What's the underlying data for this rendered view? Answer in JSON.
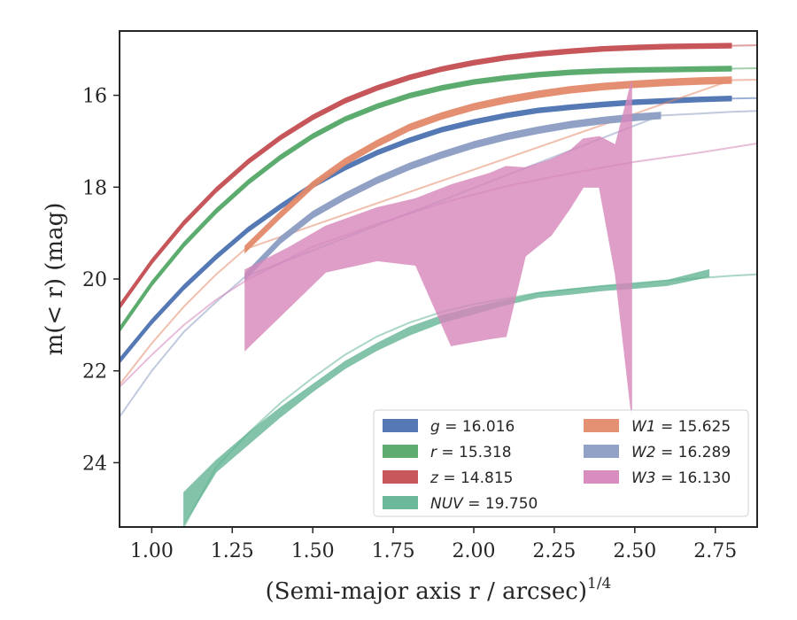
{
  "chart_data": {
    "type": "line",
    "xlabel": "(Semi-major axis r / arcsec)",
    "xlabel_superscript": "1/4",
    "ylabel": "m(< r) (mag)",
    "xlim": [
      0.9,
      2.88
    ],
    "ylim": [
      25.4,
      14.6
    ],
    "y_inverted": true,
    "xticks": [
      "1.00",
      "1.25",
      "1.50",
      "1.75",
      "2.00",
      "2.25",
      "2.50",
      "2.75"
    ],
    "xtick_values": [
      1.0,
      1.25,
      1.5,
      1.75,
      2.0,
      2.25,
      2.5,
      2.75
    ],
    "yticks": [
      "16",
      "18",
      "20",
      "22",
      "24"
    ],
    "ytick_values": [
      16,
      18,
      20,
      22,
      24
    ],
    "grid": false,
    "legend_position": "lower-right",
    "series": [
      {
        "name": "g = 16.016",
        "band": "g",
        "mag": "16.016",
        "color": "#4c72b0",
        "legend_col": 0,
        "band_width": 0.05,
        "x": [
          0.9,
          1.0,
          1.1,
          1.2,
          1.3,
          1.4,
          1.5,
          1.6,
          1.7,
          1.8,
          1.9,
          2.0,
          2.1,
          2.2,
          2.3,
          2.4,
          2.5,
          2.6,
          2.7,
          2.8
        ],
        "y": [
          21.78,
          20.93,
          20.18,
          19.52,
          18.92,
          18.42,
          17.96,
          17.58,
          17.25,
          16.98,
          16.75,
          16.58,
          16.44,
          16.33,
          16.26,
          16.2,
          16.15,
          16.12,
          16.09,
          16.07
        ],
        "faint_x": [
          2.8,
          2.88
        ],
        "faint_y": [
          16.07,
          16.06
        ]
      },
      {
        "name": "r = 15.318",
        "band": "r",
        "mag": "15.318",
        "color": "#55a868",
        "legend_col": 0,
        "band_width": 0.05,
        "x": [
          0.9,
          1.0,
          1.1,
          1.2,
          1.3,
          1.4,
          1.5,
          1.6,
          1.7,
          1.8,
          1.9,
          2.0,
          2.1,
          2.2,
          2.3,
          2.4,
          2.5,
          2.6,
          2.7,
          2.8
        ],
        "y": [
          21.1,
          20.1,
          19.25,
          18.52,
          17.89,
          17.35,
          16.89,
          16.52,
          16.24,
          16.01,
          15.84,
          15.71,
          15.62,
          15.55,
          15.5,
          15.47,
          15.45,
          15.44,
          15.43,
          15.42
        ],
        "faint_x": [
          2.8,
          2.88
        ],
        "faint_y": [
          15.42,
          15.41
        ]
      },
      {
        "name": "z = 14.815",
        "band": "z",
        "mag": "14.815",
        "color": "#c44e52",
        "legend_col": 0,
        "band_width": 0.05,
        "x": [
          0.9,
          1.0,
          1.1,
          1.2,
          1.3,
          1.4,
          1.5,
          1.6,
          1.7,
          1.8,
          1.9,
          2.0,
          2.1,
          2.2,
          2.3,
          2.4,
          2.5,
          2.6,
          2.7,
          2.8
        ],
        "y": [
          20.6,
          19.62,
          18.78,
          18.06,
          17.44,
          16.92,
          16.48,
          16.12,
          15.84,
          15.61,
          15.43,
          15.29,
          15.18,
          15.1,
          15.04,
          14.99,
          14.96,
          14.94,
          14.93,
          14.92
        ],
        "faint_x": [
          2.8,
          2.88
        ],
        "faint_y": [
          14.92,
          14.91
        ]
      },
      {
        "name": "NUV = 19.750",
        "band": "NUV",
        "mag": "19.750",
        "color": "#64b594",
        "legend_col": 0,
        "upper": [
          [
            1.1,
            24.65
          ],
          [
            1.2,
            23.95
          ],
          [
            1.3,
            23.35
          ],
          [
            1.4,
            22.8
          ],
          [
            1.5,
            22.3
          ],
          [
            1.6,
            21.8
          ],
          [
            1.7,
            21.4
          ],
          [
            1.8,
            21.05
          ],
          [
            1.9,
            20.8
          ],
          [
            2.0,
            20.62
          ],
          [
            2.1,
            20.46
          ],
          [
            2.2,
            20.3
          ],
          [
            2.3,
            20.22
          ],
          [
            2.4,
            20.15
          ],
          [
            2.5,
            20.1
          ],
          [
            2.6,
            20.03
          ],
          [
            2.73,
            19.8
          ]
        ],
        "lower": [
          [
            1.1,
            25.35
          ],
          [
            1.2,
            24.2
          ],
          [
            1.3,
            23.6
          ],
          [
            1.4,
            23.0
          ],
          [
            1.5,
            22.45
          ],
          [
            1.6,
            21.95
          ],
          [
            1.7,
            21.55
          ],
          [
            1.8,
            21.22
          ],
          [
            1.9,
            20.95
          ],
          [
            2.0,
            20.76
          ],
          [
            2.1,
            20.56
          ],
          [
            2.2,
            20.4
          ],
          [
            2.3,
            20.33
          ],
          [
            2.4,
            20.25
          ],
          [
            2.5,
            20.2
          ],
          [
            2.6,
            20.14
          ],
          [
            2.73,
            19.95
          ]
        ],
        "faint_x": [
          1.1,
          1.2,
          1.3,
          1.4,
          1.5,
          1.6,
          1.7,
          1.8,
          1.9,
          2.0,
          2.2,
          2.4,
          2.6,
          2.8,
          2.88
        ],
        "faint_y": [
          25.4,
          24.1,
          23.35,
          22.7,
          22.15,
          21.65,
          21.25,
          20.95,
          20.72,
          20.55,
          20.3,
          20.15,
          20.03,
          19.93,
          19.9
        ]
      },
      {
        "name": "W1 = 15.625",
        "band": "W1",
        "mag": "15.625",
        "color": "#e38a6b",
        "legend_col": 1,
        "band_width": 0.07,
        "x": [
          1.29,
          1.4,
          1.5,
          1.6,
          1.7,
          1.8,
          1.9,
          2.0,
          2.1,
          2.2,
          2.3,
          2.4,
          2.5,
          2.6,
          2.7,
          2.8
        ],
        "y": [
          19.35,
          18.6,
          17.95,
          17.45,
          17.05,
          16.7,
          16.45,
          16.25,
          16.1,
          15.98,
          15.88,
          15.81,
          15.76,
          15.72,
          15.69,
          15.67
        ],
        "faint_x": [
          0.9,
          1.0,
          1.1,
          1.2,
          1.29,
          2.8,
          2.88
        ],
        "faint_y": [
          22.3,
          21.4,
          20.6,
          19.9,
          19.35,
          15.67,
          15.66
        ]
      },
      {
        "name": "W2 = 16.289",
        "band": "W2",
        "mag": "16.289",
        "color": "#8c9dc3",
        "legend_col": 1,
        "band_width": 0.07,
        "x": [
          1.29,
          1.4,
          1.5,
          1.6,
          1.7,
          1.8,
          1.9,
          2.0,
          2.1,
          2.2,
          2.3,
          2.4,
          2.5,
          2.58
        ],
        "y": [
          19.95,
          19.15,
          18.6,
          18.2,
          17.85,
          17.55,
          17.3,
          17.08,
          16.9,
          16.76,
          16.64,
          16.55,
          16.48,
          16.44
        ],
        "faint_x": [
          0.9,
          1.0,
          1.1,
          1.2,
          1.29,
          2.58,
          2.7,
          2.8,
          2.88
        ],
        "faint_y": [
          23.0,
          22.0,
          21.15,
          20.5,
          19.95,
          16.44,
          16.4,
          16.36,
          16.34
        ]
      },
      {
        "name": "W3 = 16.130",
        "band": "W3",
        "mag": "16.130",
        "color": "#d687bb",
        "legend_col": 1,
        "upper": [
          [
            1.29,
            19.8
          ],
          [
            1.43,
            19.3
          ],
          [
            1.54,
            18.85
          ],
          [
            1.7,
            18.45
          ],
          [
            1.82,
            18.25
          ],
          [
            1.93,
            17.95
          ],
          [
            2.05,
            17.7
          ],
          [
            2.1,
            17.55
          ],
          [
            2.16,
            17.58
          ],
          [
            2.24,
            17.4
          ],
          [
            2.3,
            17.2
          ],
          [
            2.34,
            16.95
          ],
          [
            2.39,
            16.9
          ],
          [
            2.44,
            17.08
          ],
          [
            2.49,
            15.7
          ]
        ],
        "lower": [
          [
            1.29,
            21.55
          ],
          [
            1.43,
            20.6
          ],
          [
            1.54,
            19.85
          ],
          [
            1.7,
            19.6
          ],
          [
            1.82,
            19.7
          ],
          [
            1.93,
            21.45
          ],
          [
            2.05,
            21.3
          ],
          [
            2.1,
            21.25
          ],
          [
            2.16,
            19.5
          ],
          [
            2.24,
            19.05
          ],
          [
            2.3,
            18.45
          ],
          [
            2.34,
            18.0
          ],
          [
            2.39,
            18.0
          ],
          [
            2.44,
            19.9
          ],
          [
            2.49,
            22.95
          ]
        ],
        "faint_x": [
          0.9,
          1.0,
          1.1,
          1.2,
          1.3,
          1.5,
          1.7,
          1.9,
          2.1,
          2.3,
          2.5,
          2.7,
          2.88
        ],
        "faint_y": [
          22.35,
          21.65,
          21.0,
          20.45,
          20.0,
          19.3,
          18.8,
          18.35,
          17.98,
          17.7,
          17.45,
          17.25,
          17.05
        ]
      }
    ]
  }
}
